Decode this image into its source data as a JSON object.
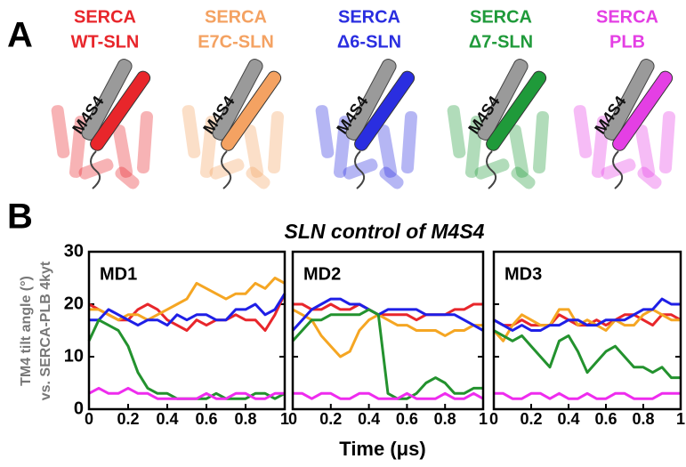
{
  "panel_a": {
    "label": "A",
    "structures": [
      {
        "lines": [
          "SERCA",
          "WT-SLN"
        ],
        "color": "#e8262b",
        "helix_label": "M4S4"
      },
      {
        "lines": [
          "SERCA",
          "E7C-SLN"
        ],
        "color": "#f4a262",
        "helix_label": "M4S4"
      },
      {
        "lines": [
          "SERCA",
          "Δ6-SLN"
        ],
        "color": "#2a2ee0",
        "helix_label": "M4S4"
      },
      {
        "lines": [
          "SERCA",
          "Δ7-SLN"
        ],
        "color": "#1f9a3a",
        "helix_label": "M4S4"
      },
      {
        "lines": [
          "SERCA",
          "PLB"
        ],
        "color": "#e43fe4",
        "helix_label": "M4S4"
      }
    ]
  },
  "panel_b": {
    "label": "B",
    "title": "SLN control of M4S4",
    "xlabel": "Time (μs)",
    "ylabel": [
      "TM4 tilt angle (°)",
      "vs. SERCA-PLB 4kyt"
    ]
  },
  "chart_data": [
    {
      "type": "line",
      "title": "MD1",
      "x": [
        0,
        0.05,
        0.1,
        0.15,
        0.2,
        0.25,
        0.3,
        0.35,
        0.4,
        0.45,
        0.5,
        0.55,
        0.6,
        0.65,
        0.7,
        0.75,
        0.8,
        0.85,
        0.9,
        0.95,
        1
      ],
      "xlim": [
        0,
        1
      ],
      "xticks": [
        0,
        0.2,
        0.4,
        0.6,
        0.8,
        1
      ],
      "ylim": [
        0,
        30
      ],
      "yticks": [
        0,
        10,
        20,
        30
      ],
      "series": [
        {
          "color": "#e8262b",
          "values": [
            20,
            19,
            18,
            17,
            17,
            19,
            20,
            19,
            17,
            16,
            15,
            17,
            16,
            17,
            17,
            18,
            17,
            17,
            15,
            18,
            22
          ]
        },
        {
          "color": "#f5a623",
          "values": [
            19,
            19,
            18,
            17,
            18,
            18,
            17,
            18,
            19,
            20,
            21,
            24,
            23,
            22,
            21,
            22,
            22,
            24,
            23,
            25,
            24
          ]
        },
        {
          "color": "#1f1fe6",
          "values": [
            17,
            17,
            19,
            18,
            17,
            16,
            17,
            17,
            16,
            18,
            17,
            18,
            18,
            17,
            17,
            19,
            19,
            20,
            18,
            19,
            22
          ]
        },
        {
          "color": "#23922e",
          "values": [
            13,
            17,
            16,
            15,
            12,
            7,
            4,
            3,
            3,
            2,
            2,
            2,
            2,
            3,
            2,
            2,
            2,
            3,
            3,
            2,
            3
          ]
        },
        {
          "color": "#ee2cee",
          "values": [
            3,
            4,
            3,
            3,
            4,
            3,
            3,
            2,
            2,
            2,
            2,
            2,
            3,
            2,
            2,
            3,
            3,
            2,
            2,
            3,
            3
          ]
        }
      ]
    },
    {
      "type": "line",
      "title": "MD2",
      "x": [
        0,
        0.05,
        0.1,
        0.15,
        0.2,
        0.25,
        0.3,
        0.35,
        0.4,
        0.45,
        0.5,
        0.55,
        0.6,
        0.65,
        0.7,
        0.75,
        0.8,
        0.85,
        0.9,
        0.95,
        1
      ],
      "xlim": [
        0,
        1
      ],
      "xticks": [
        0,
        0.2,
        0.4,
        0.6,
        0.8,
        1
      ],
      "ylim": [
        0,
        30
      ],
      "yticks": [
        0,
        10,
        20,
        30
      ],
      "series": [
        {
          "color": "#e8262b",
          "values": [
            20,
            20,
            19,
            19,
            20,
            19,
            19,
            20,
            19,
            18,
            18,
            18,
            18,
            17,
            18,
            18,
            18,
            19,
            19,
            20,
            20
          ]
        },
        {
          "color": "#f5a623",
          "values": [
            19,
            18,
            17,
            14,
            12,
            10,
            11,
            15,
            17,
            18,
            17,
            16,
            16,
            15,
            15,
            15,
            14,
            15,
            15,
            16,
            16
          ]
        },
        {
          "color": "#1f1fe6",
          "values": [
            15,
            17,
            19,
            20,
            21,
            21,
            20,
            20,
            19,
            18,
            19,
            19,
            19,
            19,
            18,
            18,
            18,
            18,
            17,
            16,
            15
          ]
        },
        {
          "color": "#23922e",
          "values": [
            13,
            15,
            17,
            17,
            18,
            18,
            18,
            18,
            19,
            18,
            3,
            2,
            2,
            3,
            5,
            6,
            5,
            3,
            3,
            4,
            4
          ]
        },
        {
          "color": "#ee2cee",
          "values": [
            3,
            3,
            2,
            3,
            3,
            2,
            2,
            3,
            3,
            2,
            2,
            2,
            3,
            2,
            2,
            2,
            3,
            2,
            2,
            3,
            2
          ]
        }
      ]
    },
    {
      "type": "line",
      "title": "MD3",
      "x": [
        0,
        0.05,
        0.1,
        0.15,
        0.2,
        0.25,
        0.3,
        0.35,
        0.4,
        0.45,
        0.5,
        0.55,
        0.6,
        0.65,
        0.7,
        0.75,
        0.8,
        0.85,
        0.9,
        0.95,
        1
      ],
      "xlim": [
        0,
        1
      ],
      "xticks": [
        0,
        0.2,
        0.4,
        0.6,
        0.8,
        1
      ],
      "ylim": [
        0,
        30
      ],
      "yticks": [
        0,
        10,
        20,
        30
      ],
      "series": [
        {
          "color": "#e8262b",
          "values": [
            17,
            16,
            16,
            17,
            16,
            16,
            16,
            18,
            17,
            16,
            16,
            17,
            16,
            17,
            18,
            18,
            17,
            16,
            18,
            18,
            17
          ]
        },
        {
          "color": "#f5a623",
          "values": [
            15,
            13,
            16,
            18,
            17,
            16,
            16,
            19,
            19,
            16,
            17,
            16,
            15,
            17,
            16,
            16,
            18,
            19,
            18,
            17,
            17
          ]
        },
        {
          "color": "#1f1fe6",
          "values": [
            17,
            16,
            15,
            16,
            15,
            15,
            16,
            16,
            17,
            17,
            16,
            16,
            17,
            17,
            17,
            18,
            19,
            19,
            21,
            20,
            20
          ]
        },
        {
          "color": "#23922e",
          "values": [
            15,
            14,
            13,
            14,
            12,
            10,
            8,
            13,
            14,
            11,
            7,
            9,
            11,
            12,
            10,
            8,
            8,
            7,
            8,
            6,
            6
          ]
        },
        {
          "color": "#ee2cee",
          "values": [
            3,
            3,
            2,
            2,
            3,
            3,
            2,
            3,
            2,
            2,
            3,
            2,
            2,
            3,
            3,
            2,
            2,
            2,
            3,
            3,
            3
          ]
        }
      ]
    }
  ]
}
